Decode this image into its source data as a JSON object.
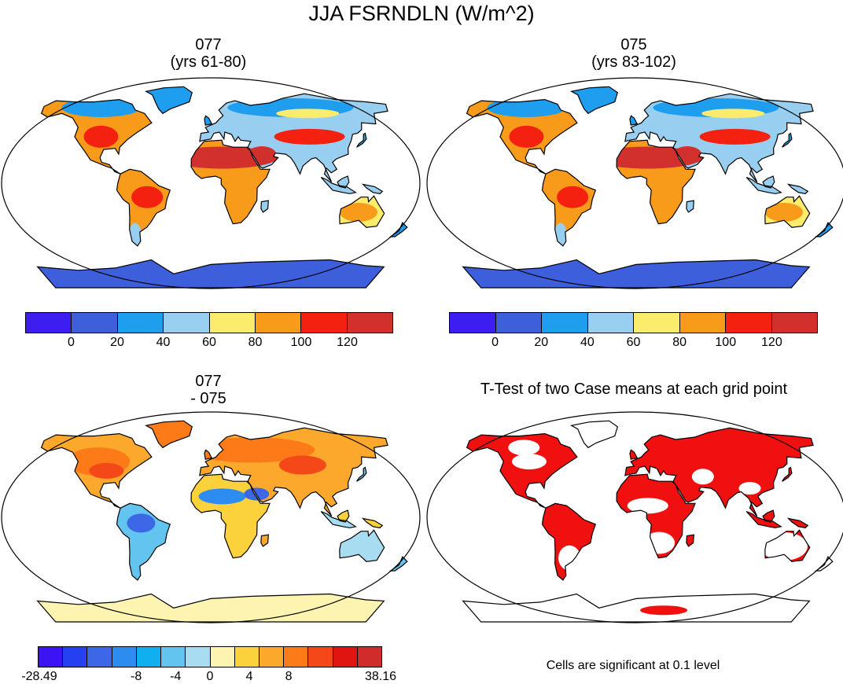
{
  "title": "JJA FSRNDLN (W/m^2)",
  "panels": [
    {
      "id": "p1",
      "line1": "077",
      "line2": "(yrs 61-80)"
    },
    {
      "id": "p2",
      "line1": "075",
      "line2": "(yrs 83-102)"
    },
    {
      "id": "p3",
      "line1": "077",
      "line2": "- 075"
    },
    {
      "id": "p4",
      "line1": "T-Test of two Case means at each grid point",
      "line2": ""
    }
  ],
  "colorbar_abs": {
    "colors": [
      "#3d1ef0",
      "#3d5fdc",
      "#1f9ef0",
      "#98cff0",
      "#fcec6c",
      "#f89a1a",
      "#f42010",
      "#d2302c"
    ],
    "ticks": [
      "0",
      "20",
      "40",
      "60",
      "80",
      "100",
      "120"
    ]
  },
  "colorbar_diff": {
    "colors": [
      "#3c14f4",
      "#2440f0",
      "#3c68e8",
      "#2c8cf0",
      "#10b0f0",
      "#64c4f0",
      "#a8dcf0",
      "#fcf4b0",
      "#fcd23c",
      "#fca82c",
      "#fc7a18",
      "#f44818",
      "#e01410",
      "#d02c2c"
    ],
    "ticks": [
      "-28.49",
      "-8",
      "-4",
      "0",
      "4",
      "8",
      "38.16"
    ]
  },
  "significance_note": "Cells are significant at 0.1 level",
  "chart_data": [
    {
      "type": "heatmap",
      "title": "077 (yrs 61-80)",
      "projection": "robinson",
      "levels": [
        0,
        20,
        40,
        60,
        80,
        100,
        120
      ],
      "colorbar_ticks": [
        "0",
        "20",
        "40",
        "60",
        "80",
        "100",
        "120"
      ]
    },
    {
      "type": "heatmap",
      "title": "075 (yrs 83-102)",
      "projection": "robinson",
      "levels": [
        0,
        20,
        40,
        60,
        80,
        100,
        120
      ],
      "colorbar_ticks": [
        "0",
        "20",
        "40",
        "60",
        "80",
        "100",
        "120"
      ]
    },
    {
      "type": "heatmap",
      "title": "077 - 075",
      "projection": "robinson",
      "range": [
        -28.49,
        38.16
      ],
      "colorbar_ticks": [
        "-28.49",
        "-8",
        "-4",
        "0",
        "4",
        "8",
        "38.16"
      ]
    },
    {
      "type": "heatmap",
      "title": "T-Test of two Case means at each grid point",
      "projection": "robinson",
      "note": "Cells are significant at 0.1 level"
    }
  ]
}
